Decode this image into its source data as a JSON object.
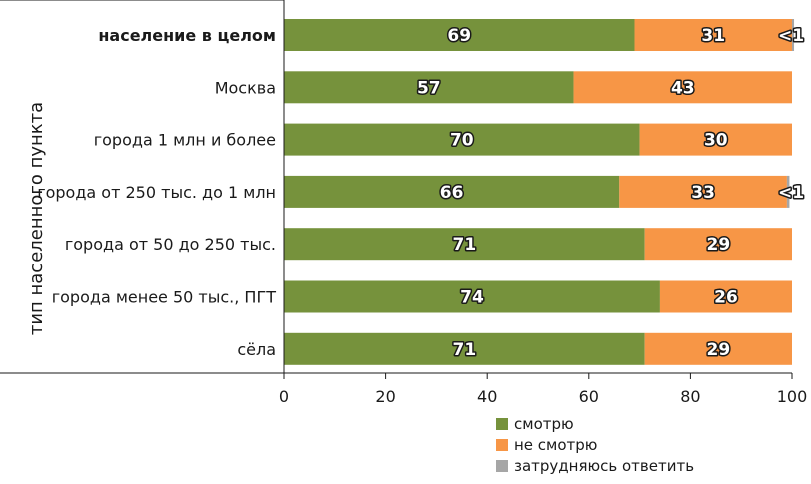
{
  "chart_data": {
    "type": "bar",
    "orientation": "horizontal",
    "stacked": true,
    "title": "",
    "xlabel": "",
    "ylabel": "тип населенного пункта",
    "xlim": [
      0,
      100
    ],
    "xticks": [
      "0",
      "20",
      "40",
      "60",
      "80",
      "100"
    ],
    "categories": [
      "население в целом",
      "Москва",
      "города 1 млн и более",
      "города от 250 тыс. до 1 млн",
      "города от 50 до 250 тыс.",
      "города менее 50 тыс., ПГТ",
      "сёла"
    ],
    "bold_categories": [
      "население в целом"
    ],
    "series": [
      {
        "name": "смотрю",
        "color": "#76923c",
        "values": [
          69,
          57,
          70,
          66,
          71,
          74,
          71
        ],
        "labels": [
          "69",
          "57",
          "70",
          "66",
          "71",
          "74",
          "71"
        ]
      },
      {
        "name": "не смотрю",
        "color": "#f79646",
        "values": [
          31,
          43,
          30,
          33,
          29,
          26,
          29
        ],
        "labels": [
          "31",
          "43",
          "30",
          "33",
          "29",
          "26",
          "29"
        ]
      },
      {
        "name": "затрудняюсь ответить",
        "color": "#a6a6a6",
        "values": [
          0.4,
          0,
          0,
          0.5,
          0,
          0,
          0
        ],
        "labels": [
          "<1",
          "",
          "",
          "<1",
          "",
          "",
          ""
        ]
      }
    ],
    "grid": false,
    "legend": "bottom"
  }
}
